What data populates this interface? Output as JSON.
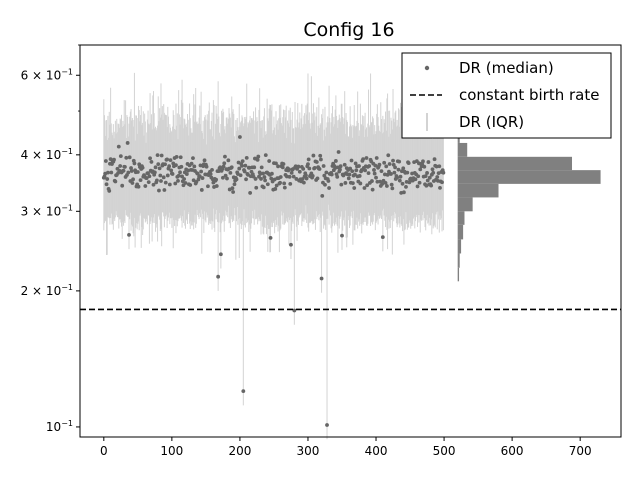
{
  "chart_data": {
    "type": "scatter",
    "title": "Config 16",
    "xlabel": "",
    "ylabel": "",
    "x_scale": "linear",
    "y_scale": "log",
    "xlim": [
      -35,
      760
    ],
    "ylim": [
      0.095,
      0.7
    ],
    "x_ticks": [
      0,
      100,
      200,
      300,
      400,
      500,
      600,
      700
    ],
    "y_ticks": [
      {
        "value": 0.6,
        "label": "6 × 10",
        "exp": "−1"
      },
      {
        "value": 0.4,
        "label": "4 × 10",
        "exp": "−1"
      },
      {
        "value": 0.3,
        "label": "3 × 10",
        "exp": "−1"
      },
      {
        "value": 0.2,
        "label": "2 × 10",
        "exp": "−1"
      },
      {
        "value": 0.1,
        "label": "10",
        "exp": "−1"
      }
    ],
    "grid": false,
    "legend_position": "top-right",
    "series": [
      {
        "name": "DR (median)",
        "kind": "points",
        "color": "#666666",
        "n": 500,
        "typical": 0.365,
        "q1_typical": 0.285,
        "q3_typical": 0.48
      },
      {
        "name": "constant birth rate",
        "kind": "hline",
        "color": "#000000",
        "y": 0.182
      },
      {
        "name": "DR (IQR)",
        "kind": "errorbars",
        "color": "#d3d3d3"
      }
    ],
    "outliers": [
      {
        "x": 205,
        "y": 0.12
      },
      {
        "x": 328,
        "y": 0.101
      },
      {
        "x": 280,
        "y": 0.181
      },
      {
        "x": 168,
        "y": 0.215
      },
      {
        "x": 320,
        "y": 0.213
      },
      {
        "x": 172,
        "y": 0.241
      },
      {
        "x": 275,
        "y": 0.253
      },
      {
        "x": 245,
        "y": 0.262
      },
      {
        "x": 37,
        "y": 0.266
      },
      {
        "x": 350,
        "y": 0.265
      },
      {
        "x": 410,
        "y": 0.263
      },
      {
        "x": 200,
        "y": 0.438
      },
      {
        "x": 35,
        "y": 0.425
      }
    ],
    "histogram": {
      "orientation": "horizontal",
      "color": "#808080",
      "x_origin": 520,
      "bins": [
        {
          "low": 0.21,
          "high": 0.225,
          "count": 2
        },
        {
          "low": 0.225,
          "high": 0.242,
          "count": 3
        },
        {
          "low": 0.242,
          "high": 0.26,
          "count": 5
        },
        {
          "low": 0.26,
          "high": 0.28,
          "count": 8
        },
        {
          "low": 0.28,
          "high": 0.3,
          "count": 10
        },
        {
          "low": 0.3,
          "high": 0.322,
          "count": 22
        },
        {
          "low": 0.322,
          "high": 0.345,
          "count": 60
        },
        {
          "low": 0.345,
          "high": 0.37,
          "count": 210
        },
        {
          "low": 0.37,
          "high": 0.396,
          "count": 168
        },
        {
          "low": 0.396,
          "high": 0.425,
          "count": 14
        },
        {
          "low": 0.425,
          "high": 0.455,
          "count": 3
        }
      ]
    }
  }
}
